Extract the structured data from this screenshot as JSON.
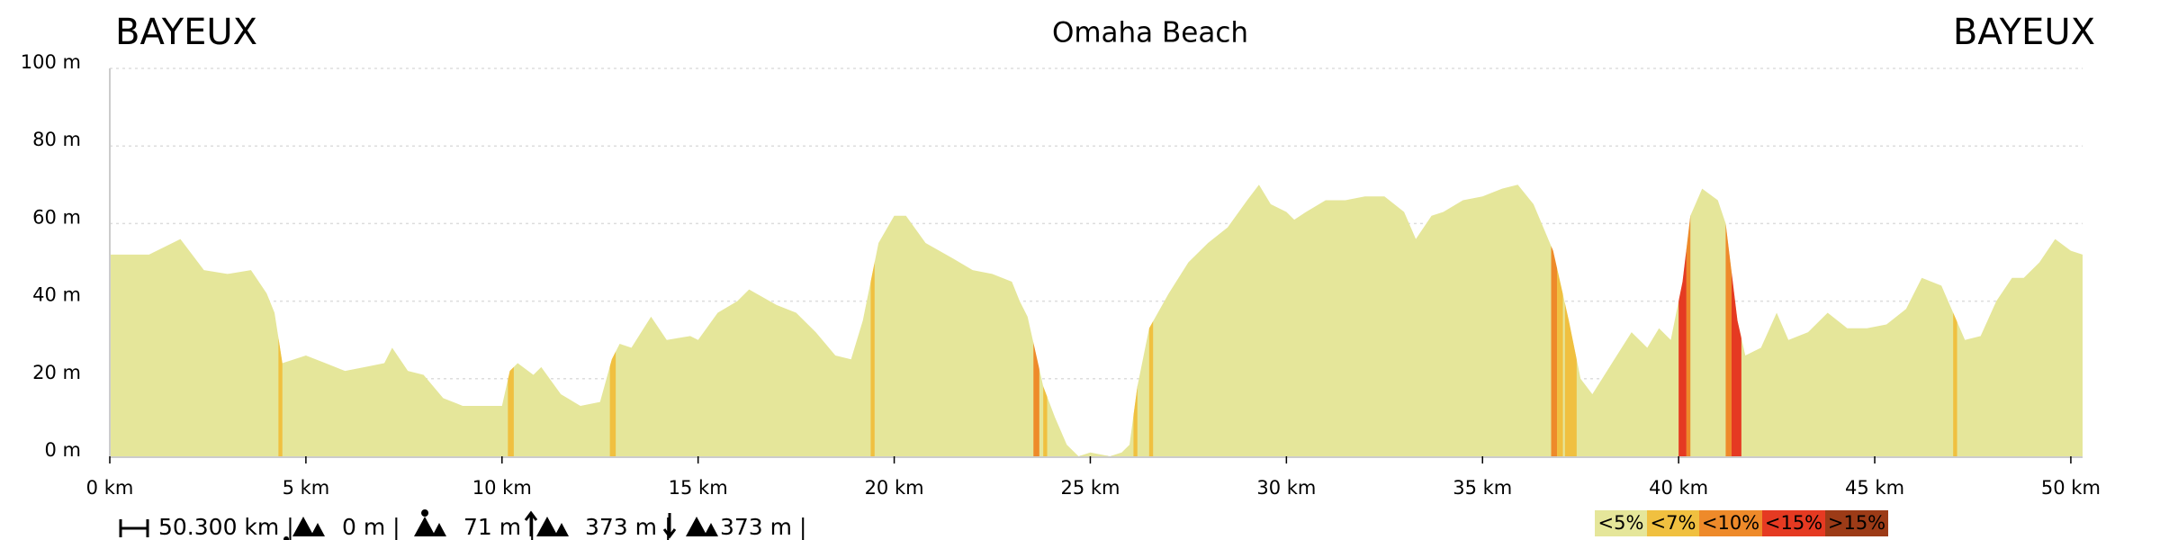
{
  "chart_data": {
    "type": "area",
    "title": "Omaha Beach",
    "start_label": "BAYEUX",
    "end_label": "BAYEUX",
    "color": "#e5e69a",
    "grid": true,
    "x": [
      0,
      1,
      1.8,
      2.4,
      3,
      3.6,
      4,
      4.2,
      4.4,
      5,
      5.5,
      6,
      6.5,
      7,
      7.2,
      7.6,
      8,
      8.5,
      9,
      9.5,
      10,
      10.2,
      10.4,
      10.8,
      11,
      11.5,
      12,
      12.5,
      12.8,
      13,
      13.3,
      13.8,
      14.2,
      14.8,
      15,
      15.5,
      16,
      16.3,
      17,
      17.5,
      18,
      18.5,
      18.9,
      19.2,
      19.6,
      20,
      20.3,
      20.8,
      21.5,
      22,
      22.5,
      23,
      23.2,
      23.4,
      23.6,
      23.8,
      24.1,
      24.4,
      24.7,
      25,
      25.5,
      25.8,
      26,
      26.2,
      26.5,
      27,
      27.5,
      28,
      28.5,
      29,
      29.3,
      29.6,
      30,
      30.2,
      30.5,
      31,
      31.5,
      32,
      32.5,
      33,
      33.3,
      33.7,
      34,
      34.5,
      35,
      35.5,
      35.9,
      36.3,
      36.8,
      37.2,
      37.5,
      37.8,
      38.3,
      38.8,
      39.2,
      39.5,
      39.8,
      40.1,
      40.3,
      40.6,
      41,
      41.2,
      41.5,
      41.7,
      42.1,
      42.5,
      42.8,
      43.3,
      43.8,
      44.3,
      44.8,
      45.3,
      45.8,
      46.2,
      46.7,
      47,
      47.3,
      47.7,
      48.1,
      48.5,
      48.8,
      49.2,
      49.6,
      50,
      50.3
    ],
    "values": [
      52,
      52,
      56,
      48,
      47,
      48,
      42,
      37,
      24,
      26,
      24,
      22,
      23,
      24,
      28,
      22,
      21,
      15,
      13,
      13,
      13,
      22,
      24,
      21,
      23,
      16,
      13,
      14,
      25,
      29,
      28,
      36,
      30,
      31,
      30,
      37,
      40,
      43,
      39,
      37,
      32,
      26,
      25,
      35,
      55,
      62,
      62,
      55,
      51,
      48,
      47,
      45,
      40,
      36,
      27,
      18,
      10,
      3,
      0,
      1,
      0,
      1,
      3,
      18,
      33,
      42,
      50,
      55,
      59,
      66,
      70,
      65,
      63,
      61,
      63,
      66,
      66,
      67,
      67,
      63,
      56,
      62,
      63,
      66,
      67,
      69,
      70,
      65,
      53,
      35,
      20,
      16,
      24,
      32,
      28,
      33,
      30,
      45,
      62,
      69,
      66,
      60,
      35,
      26,
      28,
      37,
      30,
      32,
      37,
      33,
      33,
      34,
      38,
      46,
      44,
      37,
      30,
      31,
      40,
      46,
      46,
      50,
      56,
      53,
      52
    ],
    "xlim": [
      0,
      50.3
    ],
    "ylim": [
      0,
      100
    ],
    "xticks": [
      {
        "value": 0,
        "label": "0 km"
      },
      {
        "value": 5,
        "label": "5 km"
      },
      {
        "value": 10,
        "label": "10 km"
      },
      {
        "value": 15,
        "label": "15 km"
      },
      {
        "value": 20,
        "label": "20 km"
      },
      {
        "value": 25,
        "label": "25 km"
      },
      {
        "value": 30,
        "label": "30 km"
      },
      {
        "value": 35,
        "label": "35 km"
      },
      {
        "value": 40,
        "label": "40 km"
      },
      {
        "value": 45,
        "label": "45 km"
      },
      {
        "value": 50,
        "label": "50 km"
      }
    ],
    "yticks": [
      {
        "value": 0,
        "label": "0 m"
      },
      {
        "value": 20,
        "label": "20 m"
      },
      {
        "value": 40,
        "label": "40 m"
      },
      {
        "value": 60,
        "label": "60 m"
      },
      {
        "value": 80,
        "label": "80 m"
      },
      {
        "value": 100,
        "label": "100 m"
      }
    ],
    "legend": [
      {
        "label": "<5%",
        "color": "#e5e69a"
      },
      {
        "label": "<7%",
        "color": "#f0c040"
      },
      {
        "label": "<10%",
        "color": "#ee8a2a"
      },
      {
        "label": "<15%",
        "color": "#e53a22"
      },
      {
        "label": ">15%",
        "color": "#9c3b17"
      }
    ],
    "grade_bands": [
      {
        "x0": 4.3,
        "x1": 4.4,
        "grade": "<7%"
      },
      {
        "x0": 10.15,
        "x1": 10.3,
        "grade": "<7%"
      },
      {
        "x0": 12.75,
        "x1": 12.9,
        "grade": "<7%"
      },
      {
        "x0": 19.4,
        "x1": 19.5,
        "grade": "<7%"
      },
      {
        "x0": 23.55,
        "x1": 23.7,
        "grade": "<10%"
      },
      {
        "x0": 23.8,
        "x1": 23.9,
        "grade": "<7%"
      },
      {
        "x0": 26.1,
        "x1": 26.2,
        "grade": "<7%"
      },
      {
        "x0": 26.5,
        "x1": 26.6,
        "grade": "<7%"
      },
      {
        "x0": 36.75,
        "x1": 36.9,
        "grade": "<10%"
      },
      {
        "x0": 36.9,
        "x1": 37.05,
        "grade": "<7%"
      },
      {
        "x0": 37.1,
        "x1": 37.4,
        "grade": "<7%"
      },
      {
        "x0": 40.0,
        "x1": 40.2,
        "grade": "<15%"
      },
      {
        "x0": 40.2,
        "x1": 40.3,
        "grade": "<10%"
      },
      {
        "x0": 41.2,
        "x1": 41.35,
        "grade": "<10%"
      },
      {
        "x0": 41.35,
        "x1": 41.6,
        "grade": "<15%"
      },
      {
        "x0": 47.0,
        "x1": 47.1,
        "grade": "<7%"
      }
    ],
    "stats": [
      "50.300 km |",
      "0 m |",
      "71 m |",
      "373 m |",
      "373 m |"
    ]
  }
}
